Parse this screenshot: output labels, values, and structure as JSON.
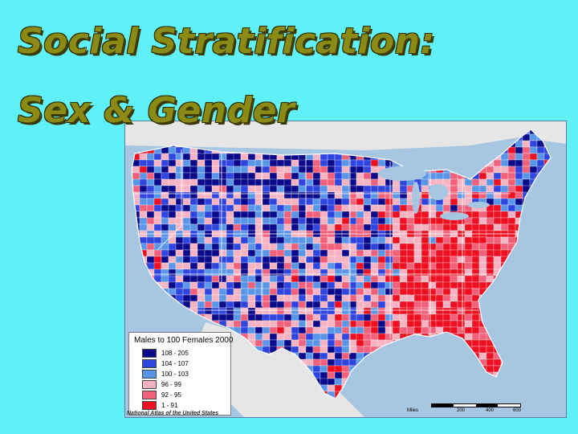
{
  "title": {
    "line1": "Social Stratification:",
    "line2": "Sex & Gender"
  },
  "map": {
    "legend": {
      "title": "Males to 100 Females 2000",
      "items": [
        {
          "label": "108 - 205",
          "color": "#0a0a8a"
        },
        {
          "label": "104 - 107",
          "color": "#2f45e0"
        },
        {
          "label": "100 - 103",
          "color": "#5a96e8"
        },
        {
          "label": "96 - 99",
          "color": "#f7b3c2"
        },
        {
          "label": "92 - 95",
          "color": "#f2607a"
        },
        {
          "label": "1 - 91",
          "color": "#ee1020"
        }
      ]
    },
    "credit": "National Atlas of the United States",
    "scale": {
      "unit": "Miles",
      "ticks": [
        "200",
        "400",
        "600"
      ]
    },
    "colors": {
      "water": "#a7c6e2",
      "land_outside": "#e6e6e6",
      "state_border": "#ffffff"
    }
  }
}
